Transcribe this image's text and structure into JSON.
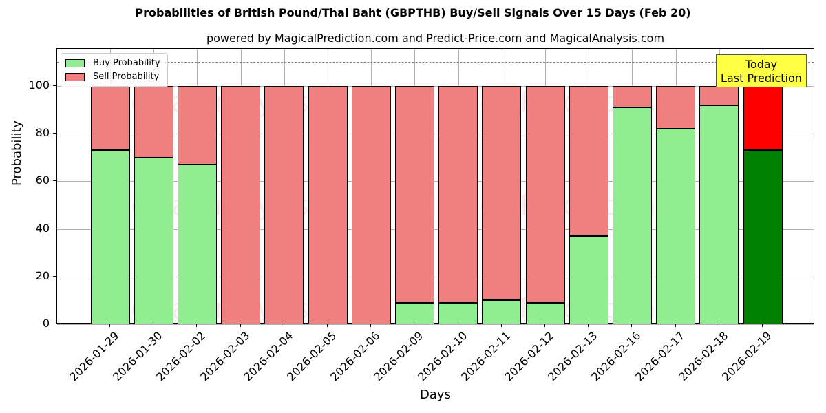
{
  "chart_data": {
    "type": "bar",
    "stacked": true,
    "title": "Probabilities of British Pound/Thai Baht (GBPTHB) Buy/Sell Signals Over 15 Days (Feb 20)",
    "subtitle": "powered by MagicalPrediction.com and Predict-Price.com and MagicalAnalysis.com",
    "xlabel": "Days",
    "ylabel": "Probability",
    "ylim": [
      0,
      115
    ],
    "yticks": [
      0,
      20,
      40,
      60,
      80,
      100
    ],
    "grid": true,
    "legend_position": "upper left",
    "categories": [
      "2026-01-29",
      "2026-01-30",
      "2026-02-02",
      "2026-02-03",
      "2026-02-04",
      "2026-02-05",
      "2026-02-06",
      "2026-02-09",
      "2026-02-10",
      "2026-02-11",
      "2026-02-12",
      "2026-02-13",
      "2026-02-16",
      "2026-02-17",
      "2026-02-18",
      "2026-02-19"
    ],
    "series": [
      {
        "name": "Buy Probability",
        "color": "#90ee90",
        "values": [
          73,
          70,
          67,
          0,
          0,
          0,
          0,
          9,
          9,
          10,
          9,
          37,
          91,
          82,
          92,
          73
        ]
      },
      {
        "name": "Sell Probability",
        "color": "#f08080",
        "values": [
          27,
          30,
          33,
          100,
          100,
          100,
          100,
          91,
          91,
          90,
          91,
          63,
          9,
          18,
          8,
          27
        ]
      }
    ],
    "highlight": {
      "index": 15,
      "buy_color": "#008000",
      "sell_color": "#ff0000"
    },
    "reference_line": {
      "y": 110,
      "style": "dashed"
    },
    "annotation": {
      "line1": "Today",
      "line2": "Last Prediction"
    },
    "watermarks": [
      "MagicalAnalysis.com",
      "MagicalPrediction.com"
    ]
  }
}
